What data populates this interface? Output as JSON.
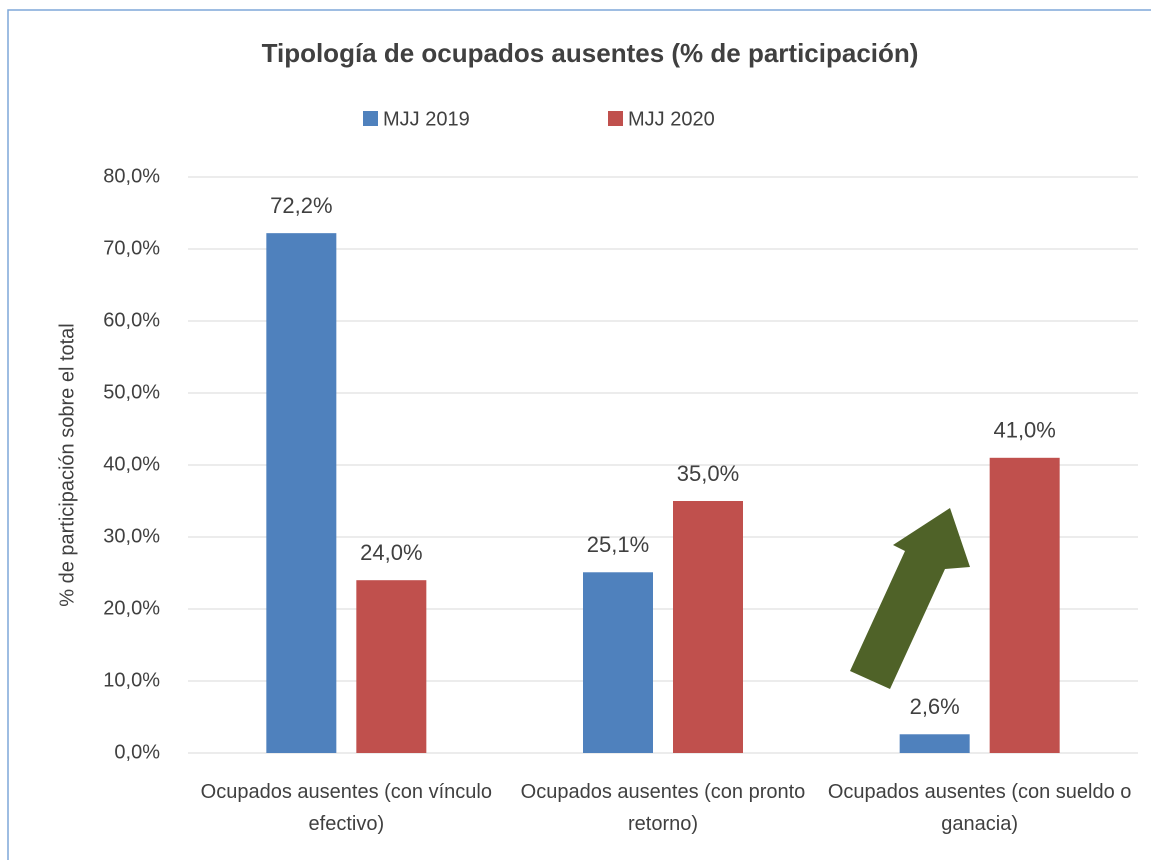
{
  "chart_data": {
    "type": "bar",
    "title": "Tipología de ocupados ausentes (% de participación)",
    "y_label": "% de participación sobre el total",
    "categories": [
      "Ocupados ausentes (con vínculo efectivo)",
      "Ocupados ausentes (con pronto retorno)",
      "Ocupados ausentes (con sueldo o ganacia)"
    ],
    "series": [
      {
        "name": "MJJ 2019",
        "color": "#4f81bd",
        "values": [
          72.2,
          25.1,
          2.6
        ],
        "value_labels": [
          "72,2%",
          "25,1%",
          "2,6%"
        ]
      },
      {
        "name": "MJJ 2020",
        "color": "#c0504d",
        "values": [
          24.0,
          35.0,
          41.0
        ],
        "value_labels": [
          "24,0%",
          "35,0%",
          "41,0%"
        ]
      }
    ],
    "ylim": [
      0,
      80
    ],
    "yticks": [
      {
        "value": 0,
        "label": "0,0%"
      },
      {
        "value": 10,
        "label": "10,0%"
      },
      {
        "value": 20,
        "label": "20,0%"
      },
      {
        "value": 30,
        "label": "30,0%"
      },
      {
        "value": 40,
        "label": "40,0%"
      },
      {
        "value": 50,
        "label": "50,0%"
      },
      {
        "value": 60,
        "label": "60,0%"
      },
      {
        "value": 70,
        "label": "70,0%"
      },
      {
        "value": 80,
        "label": "80,0%"
      }
    ],
    "grid": true,
    "legend": "top"
  }
}
